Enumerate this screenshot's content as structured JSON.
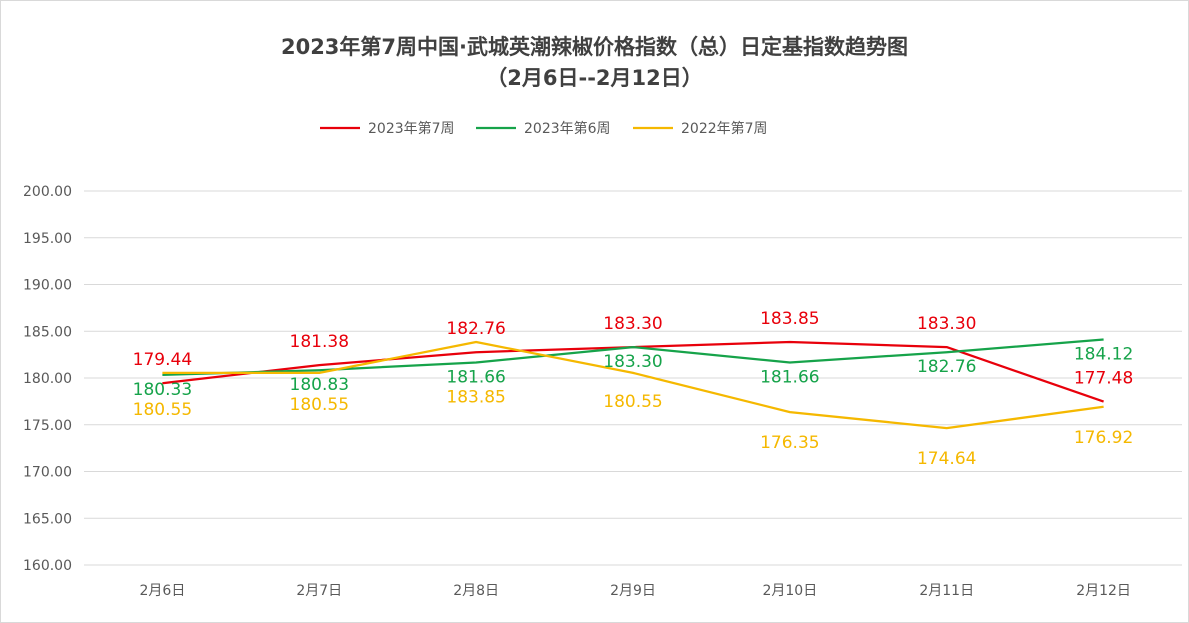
{
  "chart_data": {
    "type": "line",
    "title": "2023年第7周中国·武城英潮辣椒价格指数（总）日定基指数趋势图",
    "subtitle": "（2月6日--2月12日）",
    "categories": [
      "2月6日",
      "2月7日",
      "2月8日",
      "2月9日",
      "2月10日",
      "2月11日",
      "2月12日"
    ],
    "series": [
      {
        "name": "2023年第7周",
        "color": "#e8000b",
        "values": [
          179.44,
          181.38,
          182.76,
          183.3,
          183.85,
          183.3,
          177.48
        ],
        "labels": [
          "179.44",
          "181.38",
          "182.76",
          "183.30",
          "183.85",
          "183.30",
          "177.48"
        ]
      },
      {
        "name": "2023年第6周",
        "color": "#16a34a",
        "values": [
          180.33,
          180.83,
          181.66,
          183.3,
          181.66,
          182.76,
          184.12
        ],
        "labels": [
          "180.33",
          "180.83",
          "181.66",
          "183.30",
          "181.66",
          "182.76",
          "184.12"
        ]
      },
      {
        "name": "2022年第7周",
        "color": "#f5b800",
        "values": [
          180.55,
          180.55,
          183.85,
          180.55,
          176.35,
          174.64,
          176.92
        ],
        "labels": [
          "180.55",
          "180.55",
          "183.85",
          "180.55",
          "176.35",
          "174.64",
          "176.92"
        ]
      }
    ],
    "ylim": [
      160,
      200
    ],
    "yticks": [
      "160.00",
      "165.00",
      "170.00",
      "175.00",
      "180.00",
      "185.00",
      "190.00",
      "195.00",
      "200.00"
    ],
    "xlabel": "",
    "ylabel": "",
    "grid": true,
    "legend": "top-center"
  }
}
